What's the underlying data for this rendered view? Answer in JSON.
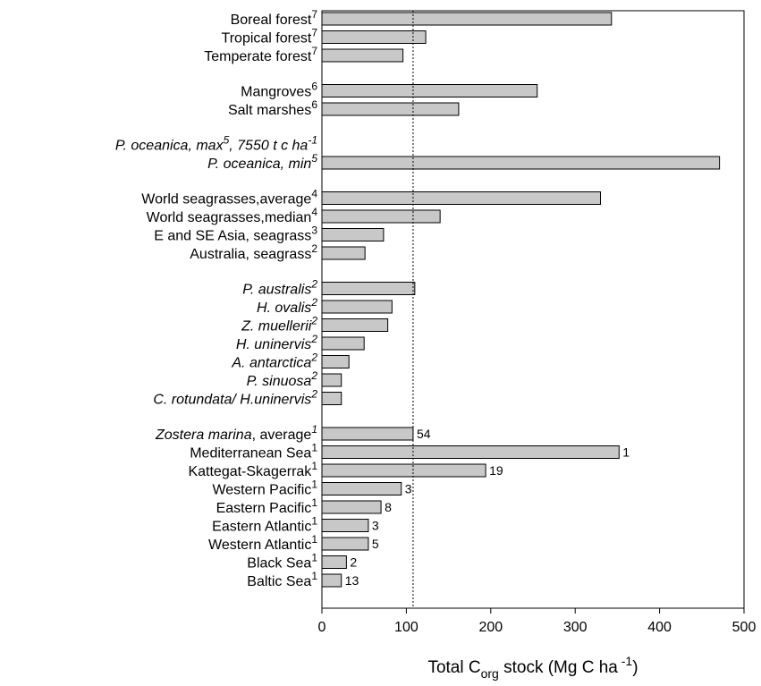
{
  "chart_data": {
    "type": "bar",
    "orientation": "horizontal",
    "xlabel": {
      "prefix": "Total C",
      "subscript": "org",
      "middle": " stock (Mg C ha",
      "superscript": " -1",
      "suffix": ")"
    },
    "xlim": [
      0,
      500
    ],
    "xticks": [
      "0",
      "100",
      "200",
      "300",
      "400",
      "500"
    ],
    "reference_line": {
      "x": 108,
      "style": "dotted"
    },
    "bar_color": "#c8c8c8",
    "grid": false,
    "legend": "none",
    "groups": [
      {
        "categories": [
          {
            "label": "Boreal forest",
            "sup": "7",
            "italic": false,
            "value": 343
          },
          {
            "label": "Tropical forest",
            "sup": "7",
            "italic": false,
            "value": 123
          },
          {
            "label": "Temperate forest",
            "sup": "7",
            "italic": false,
            "value": 96
          }
        ]
      },
      {
        "categories": [
          {
            "label": "Mangroves",
            "sup": "6",
            "italic": false,
            "value": 255
          },
          {
            "label": "Salt marshes",
            "sup": "6",
            "italic": false,
            "value": 162
          }
        ]
      },
      {
        "categories": [
          {
            "label": "P. oceanica, max",
            "sup": "5",
            "suffix": ", 7550 t c ha",
            "suffix_sup": "-1",
            "italic": true,
            "value": null
          },
          {
            "label": "P. oceanica, min",
            "sup": "5",
            "italic": true,
            "value": 471
          }
        ]
      },
      {
        "categories": [
          {
            "label": "World seagrasses,average",
            "sup": "4",
            "italic": false,
            "value": 330
          },
          {
            "label": "World seagrasses,median",
            "sup": "4",
            "italic": false,
            "value": 140
          },
          {
            "label": "E and SE Asia, seagrass",
            "sup": "3",
            "italic": false,
            "value": 73
          },
          {
            "label": "Australia, seagrass",
            "sup": "2",
            "italic": false,
            "value": 51
          }
        ]
      },
      {
        "categories": [
          {
            "label": "P. australis",
            "sup": "2",
            "italic": true,
            "value": 110
          },
          {
            "label": "H. ovalis",
            "sup": "2",
            "italic": true,
            "value": 83
          },
          {
            "label": "Z. muellerii",
            "sup": "2",
            "italic": true,
            "value": 78
          },
          {
            "label": "H. uninervis",
            "sup": "2",
            "italic": true,
            "value": 50
          },
          {
            "label": "A. antarctica",
            "sup": "2",
            "italic": true,
            "value": 32
          },
          {
            "label": "P. sinuosa",
            "sup": "2",
            "italic": true,
            "value": 23
          },
          {
            "label": "C. rotundata/ H.uninervis",
            "sup": "2",
            "italic": true,
            "value": 23
          }
        ]
      },
      {
        "categories": [
          {
            "label": "Zostera marina",
            "label_rest": ", average",
            "sup": "1",
            "italic": true,
            "value": 108,
            "n": "54"
          },
          {
            "label": "Mediterranean Sea",
            "sup": "1",
            "italic": false,
            "value": 352,
            "n": "1"
          },
          {
            "label": "Kattegat-Skagerrak",
            "sup": "1",
            "italic": false,
            "value": 194,
            "n": "19"
          },
          {
            "label": "Western Pacific",
            "sup": "1",
            "italic": false,
            "value": 94,
            "n": "3"
          },
          {
            "label": "Eastern Pacific",
            "sup": "1",
            "italic": false,
            "value": 70,
            "n": "8"
          },
          {
            "label": "Eastern Atlantic",
            "sup": "1",
            "italic": false,
            "value": 55,
            "n": "3"
          },
          {
            "label": "Western Atlantic",
            "sup": "1",
            "italic": false,
            "value": 55,
            "n": "5"
          },
          {
            "label": "Black Sea",
            "sup": "1",
            "italic": false,
            "value": 29,
            "n": "2"
          },
          {
            "label": "Baltic Sea",
            "sup": "1",
            "italic": false,
            "value": 23,
            "n": "13"
          }
        ]
      }
    ]
  }
}
